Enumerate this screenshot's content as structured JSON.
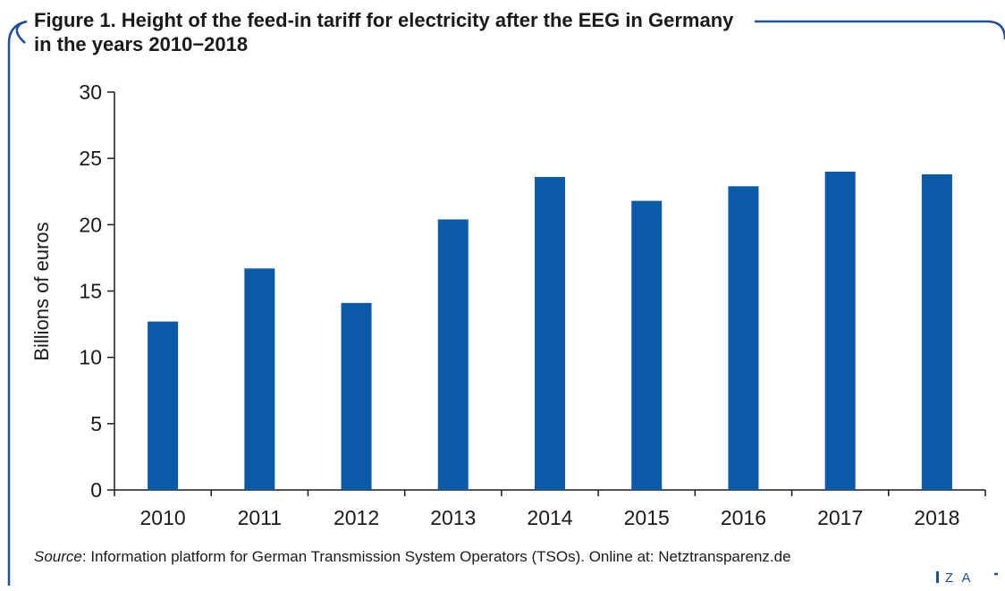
{
  "title": "Figure 1. Height of the feed-in tariff for electricity after the EEG in Germany in the years 2010−2018",
  "source": {
    "label": "Source",
    "text": ": Information platform for German Transmission System Operators (TSOs). Online at: Netztransparenz.de"
  },
  "logo_text": "Z A",
  "colors": {
    "bar": "#0a5aa8",
    "frame": "#1f4e9b",
    "axis": "#1a1a1a"
  },
  "chart_data": {
    "type": "bar",
    "title": "Figure 1. Height of the feed-in tariff for electricity after the EEG in Germany in the years 2010−2018",
    "xlabel": "",
    "ylabel": "Billions of euros",
    "categories": [
      "2010",
      "2011",
      "2012",
      "2013",
      "2014",
      "2015",
      "2016",
      "2017",
      "2018"
    ],
    "values": [
      12.7,
      16.7,
      14.1,
      20.4,
      23.6,
      21.8,
      22.9,
      24.0,
      23.8
    ],
    "ylim": [
      0,
      30
    ],
    "yticks": [
      0,
      5,
      10,
      15,
      20,
      25,
      30
    ],
    "grid": false,
    "legend": "none"
  }
}
